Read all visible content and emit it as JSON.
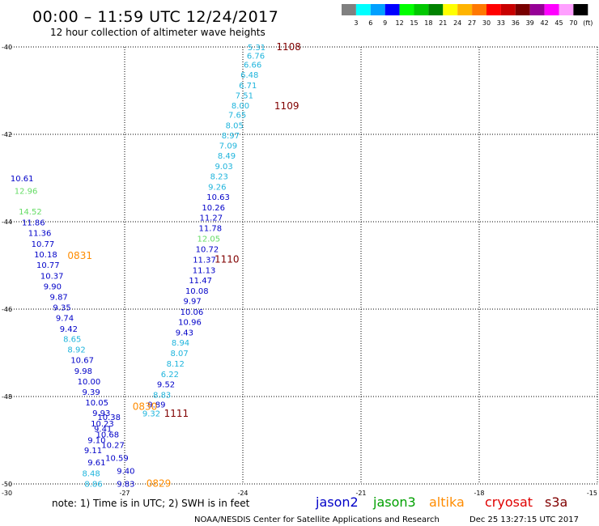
{
  "header": {
    "title": "00:00 – 11:59 UTC 12/24/2017",
    "subtitle": "12 hour collection of altimeter wave heights"
  },
  "legend": {
    "colors": [
      "#808080",
      "#00ffff",
      "#00a0ff",
      "#0000ff",
      "#00ff00",
      "#00c800",
      "#008200",
      "#ffff00",
      "#ffb400",
      "#ff7800",
      "#ff0000",
      "#c80000",
      "#780000",
      "#960096",
      "#ff00ff",
      "#ffa0ff",
      "#000000"
    ],
    "labels": [
      "3",
      "6",
      "9",
      "12",
      "15",
      "18",
      "21",
      "24",
      "27",
      "30",
      "33",
      "36",
      "39",
      "42",
      "45",
      "70",
      "(ft)"
    ]
  },
  "satellite_colors": {
    "jason2": "#0000c8",
    "jason3": "#00a000",
    "altika": "#ff8c00",
    "cryosat": "#e00000",
    "s3a": "#800000",
    "jason2_light": "#1eb4dc",
    "jason3_light": "#64dc64"
  },
  "map": {
    "lon_range": [
      -30,
      -15
    ],
    "lat_range": [
      -50,
      -40
    ],
    "x_ticks": [
      "-30",
      "-27",
      "-24",
      "-21",
      "-18",
      "-15"
    ],
    "y_ticks": [
      "-40",
      "-42",
      "-44",
      "-46",
      "-48",
      "-50"
    ]
  },
  "tracks": [
    {
      "sat": "jason2_light",
      "points": [
        {
          "lon": -23.88,
          "lat": -40.0,
          "v": "5.31"
        },
        {
          "lon": -23.9,
          "lat": -40.19,
          "v": "6.76"
        },
        {
          "lon": -23.98,
          "lat": -40.4,
          "v": "6.66"
        },
        {
          "lon": -24.06,
          "lat": -40.63,
          "v": "6.48"
        },
        {
          "lon": -24.1,
          "lat": -40.87,
          "v": "6.71"
        },
        {
          "lon": -24.19,
          "lat": -41.1,
          "v": "7.51"
        },
        {
          "lon": -24.29,
          "lat": -41.33,
          "v": "8.00"
        },
        {
          "lon": -24.37,
          "lat": -41.55,
          "v": "7.65"
        },
        {
          "lon": -24.44,
          "lat": -41.79,
          "v": "8.05"
        },
        {
          "lon": -24.54,
          "lat": -42.02,
          "v": "8.97"
        },
        {
          "lon": -24.6,
          "lat": -42.25,
          "v": "7.09"
        },
        {
          "lon": -24.64,
          "lat": -42.48,
          "v": "8.49"
        },
        {
          "lon": -24.71,
          "lat": -42.72,
          "v": "9.03"
        },
        {
          "lon": -24.83,
          "lat": -42.95,
          "v": "8.23"
        },
        {
          "lon": -24.88,
          "lat": -43.19,
          "v": "9.26"
        }
      ]
    },
    {
      "sat": "jason2",
      "points": [
        {
          "lon": -24.92,
          "lat": -43.43,
          "v": "10.63"
        },
        {
          "lon": -25.04,
          "lat": -43.67,
          "v": "10.26"
        },
        {
          "lon": -25.1,
          "lat": -43.9,
          "v": "11.27"
        },
        {
          "lon": -25.12,
          "lat": -44.14,
          "v": "11.78"
        }
      ]
    },
    {
      "sat": "jason3_light",
      "points": [
        {
          "lon": -25.16,
          "lat": -44.38,
          "v": "12.05"
        }
      ]
    },
    {
      "sat": "jason2",
      "points": [
        {
          "lon": -25.2,
          "lat": -44.62,
          "v": "10.72"
        },
        {
          "lon": -25.27,
          "lat": -44.86,
          "v": "11.37"
        },
        {
          "lon": -25.28,
          "lat": -45.1,
          "v": "11.13"
        },
        {
          "lon": -25.37,
          "lat": -45.33,
          "v": "11.47"
        },
        {
          "lon": -25.46,
          "lat": -45.57,
          "v": "10.08"
        },
        {
          "lon": -25.51,
          "lat": -45.81,
          "v": "9.97"
        },
        {
          "lon": -25.59,
          "lat": -46.06,
          "v": "10.06"
        },
        {
          "lon": -25.64,
          "lat": -46.29,
          "v": "10.96"
        },
        {
          "lon": -25.71,
          "lat": -46.53,
          "v": "9.43"
        }
      ]
    },
    {
      "sat": "jason2_light",
      "points": [
        {
          "lon": -25.81,
          "lat": -46.76,
          "v": "8.94"
        },
        {
          "lon": -25.84,
          "lat": -47.0,
          "v": "8.07"
        },
        {
          "lon": -25.94,
          "lat": -47.24,
          "v": "8.12"
        },
        {
          "lon": -26.08,
          "lat": -47.48,
          "v": "6.22"
        }
      ]
    },
    {
      "sat": "jason2",
      "points": [
        {
          "lon": -26.18,
          "lat": -47.71,
          "v": "9.52"
        }
      ]
    },
    {
      "sat": "jason2_light",
      "points": [
        {
          "lon": -26.28,
          "lat": -47.95,
          "v": "8.83"
        }
      ]
    },
    {
      "sat": "jason2",
      "points": [
        {
          "lon": -26.42,
          "lat": -48.18,
          "v": "9.89"
        }
      ]
    },
    {
      "sat": "jason2_light",
      "points": [
        {
          "lon": -26.55,
          "lat": -48.38,
          "v": "9.32"
        }
      ]
    },
    {
      "sat": "jason2",
      "points": [
        {
          "lon": -29.9,
          "lat": -43.0,
          "v": "10.61"
        }
      ]
    },
    {
      "sat": "jason3_light",
      "points": [
        {
          "lon": -29.8,
          "lat": -43.29,
          "v": "12.96"
        },
        {
          "lon": -29.69,
          "lat": -43.76,
          "v": "14.52"
        }
      ]
    },
    {
      "sat": "jason2",
      "points": [
        {
          "lon": -29.61,
          "lat": -44.01,
          "v": "11.86"
        },
        {
          "lon": -29.45,
          "lat": -44.25,
          "v": "11.36"
        },
        {
          "lon": -29.37,
          "lat": -44.5,
          "v": "10.77"
        },
        {
          "lon": -29.3,
          "lat": -44.74,
          "v": "10.18"
        },
        {
          "lon": -29.24,
          "lat": -44.98,
          "v": "10.77"
        },
        {
          "lon": -29.14,
          "lat": -45.23,
          "v": "10.37"
        },
        {
          "lon": -29.06,
          "lat": -45.47,
          "v": "9.90"
        },
        {
          "lon": -28.9,
          "lat": -45.71,
          "v": "9.87"
        },
        {
          "lon": -28.82,
          "lat": -45.95,
          "v": "9.35"
        },
        {
          "lon": -28.75,
          "lat": -46.19,
          "v": "9.74"
        },
        {
          "lon": -28.65,
          "lat": -46.44,
          "v": "9.42"
        }
      ]
    },
    {
      "sat": "jason2_light",
      "points": [
        {
          "lon": -28.56,
          "lat": -46.68,
          "v": "8.65"
        },
        {
          "lon": -28.45,
          "lat": -46.92,
          "v": "8.92"
        }
      ]
    },
    {
      "sat": "jason2",
      "points": [
        {
          "lon": -28.37,
          "lat": -47.16,
          "v": "10.67"
        },
        {
          "lon": -28.28,
          "lat": -47.41,
          "v": "9.98"
        },
        {
          "lon": -28.2,
          "lat": -47.65,
          "v": "10.00"
        },
        {
          "lon": -28.08,
          "lat": -47.89,
          "v": "9.39"
        },
        {
          "lon": -28.0,
          "lat": -48.13,
          "v": "10.05"
        },
        {
          "lon": -27.82,
          "lat": -48.37,
          "v": "9.93"
        },
        {
          "lon": -27.69,
          "lat": -48.46,
          "v": "10.38"
        },
        {
          "lon": -27.86,
          "lat": -48.61,
          "v": "10.23"
        },
        {
          "lon": -27.78,
          "lat": -48.73,
          "v": "9.41"
        },
        {
          "lon": -27.73,
          "lat": -48.86,
          "v": "10.68"
        },
        {
          "lon": -27.94,
          "lat": -48.99,
          "v": "9.10"
        },
        {
          "lon": -27.59,
          "lat": -49.1,
          "v": "10.27"
        },
        {
          "lon": -28.03,
          "lat": -49.22,
          "v": "9.11"
        },
        {
          "lon": -27.49,
          "lat": -49.4,
          "v": "10.59"
        },
        {
          "lon": -27.94,
          "lat": -49.5,
          "v": "9.61"
        },
        {
          "lon": -27.2,
          "lat": -49.69,
          "v": "9.40"
        }
      ]
    },
    {
      "sat": "jason2_light",
      "points": [
        {
          "lon": -28.08,
          "lat": -49.75,
          "v": "8.48"
        },
        {
          "lon": -28.02,
          "lat": -49.99,
          "v": "8.86"
        }
      ]
    },
    {
      "sat": "jason2",
      "points": [
        {
          "lon": -27.2,
          "lat": -49.99,
          "v": "9.83"
        }
      ]
    }
  ],
  "time_labels": [
    {
      "lon": -23.15,
      "lat": -40.0,
      "t": "1108",
      "sat": "s3a"
    },
    {
      "lon": -23.2,
      "lat": -41.35,
      "t": "1109",
      "sat": "s3a"
    },
    {
      "lon": -24.72,
      "lat": -44.86,
      "t": "1110",
      "sat": "s3a"
    },
    {
      "lon": -26.0,
      "lat": -48.39,
      "t": "1111",
      "sat": "s3a"
    },
    {
      "lon": -28.45,
      "lat": -44.78,
      "t": "0831",
      "sat": "altika"
    },
    {
      "lon": -26.8,
      "lat": -48.23,
      "t": "0830",
      "sat": "altika"
    },
    {
      "lon": -26.45,
      "lat": -49.99,
      "t": "0829",
      "sat": "altika"
    }
  ],
  "footer": {
    "note": "note:  1) Time is in UTC;  2) SWH is in feet",
    "satellites": [
      {
        "name": "jason2",
        "key": "jason2"
      },
      {
        "name": "jason3",
        "key": "jason3"
      },
      {
        "name": "altika",
        "key": "altika"
      },
      {
        "name": "cryosat",
        "key": "cryosat"
      },
      {
        "name": "s3a",
        "key": "s3a"
      }
    ],
    "credit": "NOAA/NESDIS Center for Satellite Applications and Research",
    "timestamp": "Dec 25 13:27:15 UTC 2017"
  }
}
